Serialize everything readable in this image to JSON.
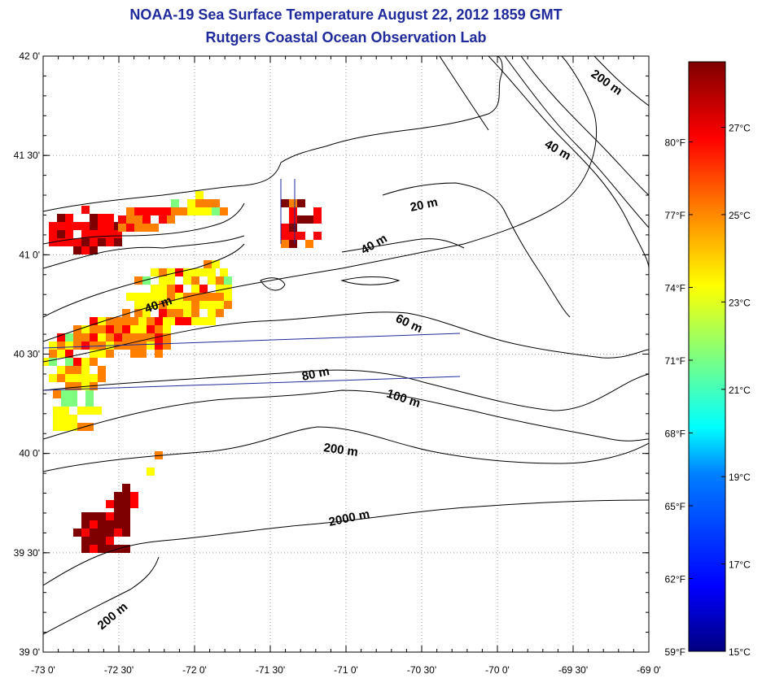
{
  "title": "NOAA-19 Sea Surface Temperature August 22, 2012 1859 GMT",
  "subtitle": "Rutgers Coastal Ocean Observation Lab",
  "axes": {
    "lon_ticks": [
      "-73 0'",
      "-72 30'",
      "-72 0'",
      "-71 30'",
      "-71 0'",
      "-70 30'",
      "-70 0'",
      "-69 30'",
      "-69 0'"
    ],
    "lat_ticks": [
      "42 0'",
      "41 30'",
      "41 0'",
      "40 30'",
      "40 0'",
      "39 30'",
      "39 0'"
    ],
    "lon_range": [
      -73,
      -69
    ],
    "lat_range": [
      39,
      42
    ]
  },
  "contour_labels": [
    {
      "text": "20 m"
    },
    {
      "text": "40 m"
    },
    {
      "text": "40 m"
    },
    {
      "text": "40 m"
    },
    {
      "text": "60 m"
    },
    {
      "text": "80 m"
    },
    {
      "text": "100 m"
    },
    {
      "text": "200 m"
    },
    {
      "text": "200 m"
    },
    {
      "text": "200 m"
    },
    {
      "text": "2000 m"
    }
  ],
  "colorbar": {
    "range_c": [
      15,
      28.5
    ],
    "celsius_ticks": [
      {
        "value": 27,
        "label": "27°C"
      },
      {
        "value": 25,
        "label": "25°C"
      },
      {
        "value": 23,
        "label": "23°C"
      },
      {
        "value": 21,
        "label": "21°C"
      },
      {
        "value": 19,
        "label": "19°C"
      },
      {
        "value": 17,
        "label": "17°C"
      },
      {
        "value": 15,
        "label": "15°C"
      }
    ],
    "fahrenheit_ticks": [
      {
        "value": 80,
        "label": "80°F"
      },
      {
        "value": 77,
        "label": "77°F"
      },
      {
        "value": 74,
        "label": "74°F"
      },
      {
        "value": 71,
        "label": "71°F"
      },
      {
        "value": 68,
        "label": "68°F"
      },
      {
        "value": 65,
        "label": "65°F"
      },
      {
        "value": 62,
        "label": "62°F"
      },
      {
        "value": 59,
        "label": "59°F"
      }
    ],
    "colors": [
      "#00007f",
      "#0000ff",
      "#007fff",
      "#00ffff",
      "#7fff7f",
      "#ffff00",
      "#ff7f00",
      "#ff0000",
      "#7f0000"
    ]
  }
}
